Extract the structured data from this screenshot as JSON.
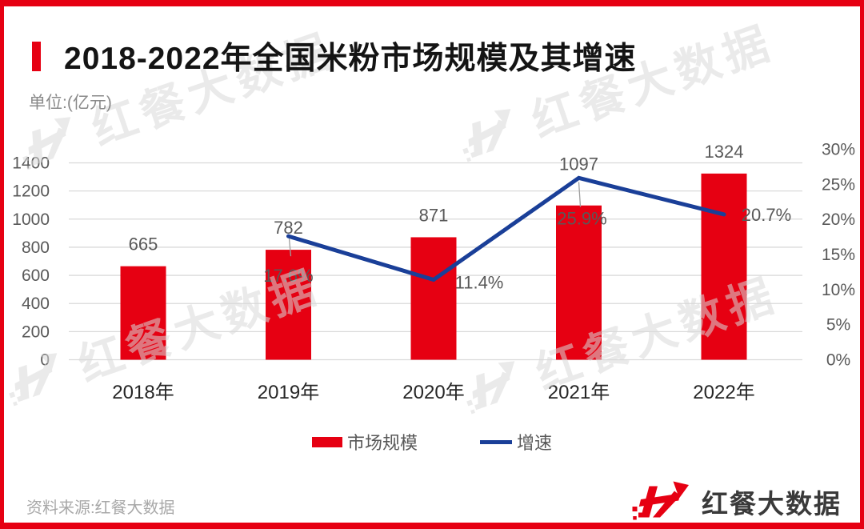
{
  "page": {
    "accent_color": "#E60012",
    "watermark_color": "#d9d9d9",
    "title": "2018-2022年全国米粉市场规模及其增速",
    "unit_label": "单位:(亿元)",
    "source_label": "资料来源:红餐大数据",
    "brand_name": "红餐大数据",
    "watermark_text": "红餐大数据"
  },
  "chart_data": {
    "type": "bar",
    "title": "2018-2022年全国米粉市场规模及其增速",
    "unit": "亿元",
    "categories": [
      "2018年",
      "2019年",
      "2020年",
      "2021年",
      "2022年"
    ],
    "series": [
      {
        "name": "市场规模",
        "type": "bar",
        "axis": "left",
        "color": "#E60012",
        "values": [
          665,
          782,
          871,
          1097,
          1324
        ],
        "labels": [
          "665",
          "782",
          "871",
          "1097",
          "1324"
        ]
      },
      {
        "name": "增速",
        "type": "line",
        "axis": "right",
        "color": "#1A3F98",
        "values": [
          null,
          17.6,
          11.4,
          25.9,
          20.7
        ],
        "labels": [
          null,
          "17.6%",
          "11.4%",
          "25.9%",
          "20.7%"
        ]
      }
    ],
    "left_axis": {
      "min": 0,
      "max": 1400,
      "step": 200,
      "tick_labels": [
        "1400",
        "1200",
        "1000",
        "800",
        "600",
        "400",
        "200",
        "0"
      ]
    },
    "right_axis": {
      "min": 0,
      "max": 30,
      "step": 5,
      "tick_labels": [
        "30%",
        "25%",
        "20%",
        "15%",
        "10%",
        "5%",
        "0%"
      ]
    },
    "grid": true,
    "legend_position": "bottom",
    "legend": [
      {
        "label": "市场规模",
        "swatch": "bar"
      },
      {
        "label": "增速",
        "swatch": "line"
      }
    ]
  }
}
